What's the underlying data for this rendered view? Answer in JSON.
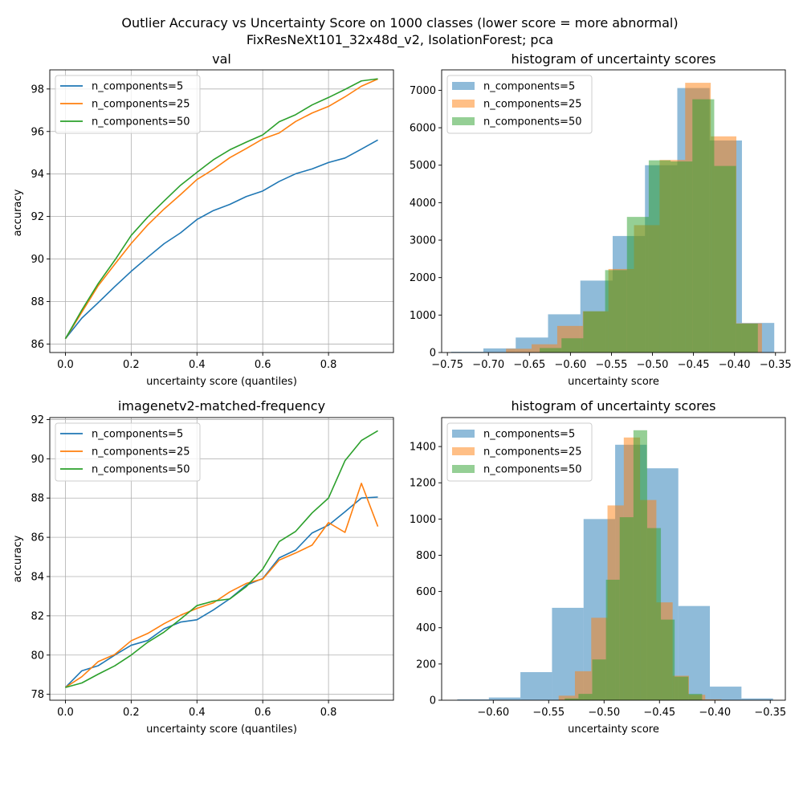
{
  "figure": {
    "suptitle_line1": "Outlier Accuracy vs Uncertainty Score on 1000 classes (lower score = more abnormal)",
    "suptitle_line2": "FixResNeXt101_32x48d_v2, IsolationForest; pca"
  },
  "colors": {
    "c5": "#1f77b4",
    "c25": "#ff7f0e",
    "c50": "#2ca02c"
  },
  "chart_data": [
    {
      "type": "line",
      "title": "val",
      "xlabel": "uncertainty score (quantiles)",
      "ylabel": "accuracy",
      "xlim": [
        -0.0475,
        0.9975
      ],
      "ylim": [
        85.6,
        98.9
      ],
      "xticks": [
        0.0,
        0.2,
        0.4,
        0.6,
        0.8
      ],
      "xtick_labels": [
        "0.0",
        "0.2",
        "0.4",
        "0.6",
        "0.8"
      ],
      "yticks": [
        86,
        88,
        90,
        92,
        94,
        96,
        98
      ],
      "ytick_labels": [
        "86",
        "88",
        "90",
        "92",
        "94",
        "96",
        "98"
      ],
      "grid": true,
      "legend": "upper-left",
      "x": [
        0.0,
        0.05,
        0.1,
        0.15,
        0.2,
        0.25,
        0.3,
        0.35,
        0.4,
        0.45,
        0.5,
        0.55,
        0.6,
        0.65,
        0.7,
        0.75,
        0.8,
        0.85,
        0.9,
        0.95
      ],
      "series": [
        {
          "name": "n_components=5",
          "color": "#1f77b4",
          "values": [
            86.25,
            87.22,
            87.95,
            88.7,
            89.42,
            90.08,
            90.72,
            91.23,
            91.86,
            92.28,
            92.57,
            92.94,
            93.2,
            93.65,
            94.01,
            94.24,
            94.54,
            94.75,
            95.17,
            95.6
          ]
        },
        {
          "name": "n_components=25",
          "color": "#ff7f0e",
          "values": [
            86.25,
            87.5,
            88.75,
            89.75,
            90.73,
            91.6,
            92.35,
            93.03,
            93.74,
            94.22,
            94.77,
            95.2,
            95.65,
            95.93,
            96.47,
            96.87,
            97.18,
            97.63,
            98.13,
            98.47
          ]
        },
        {
          "name": "n_components=50",
          "color": "#2ca02c",
          "values": [
            86.25,
            87.6,
            88.85,
            89.94,
            91.11,
            91.97,
            92.73,
            93.47,
            94.08,
            94.67,
            95.14,
            95.5,
            95.84,
            96.46,
            96.79,
            97.25,
            97.6,
            97.98,
            98.38,
            98.48
          ]
        }
      ]
    },
    {
      "type": "histogram",
      "title": "histogram of uncertainty scores",
      "xlabel": "uncertainty score",
      "ylabel": "",
      "xlim": [
        -0.757,
        -0.338
      ],
      "ylim": [
        0,
        7545
      ],
      "xticks": [
        -0.75,
        -0.7,
        -0.65,
        -0.6,
        -0.55,
        -0.5,
        -0.45,
        -0.4,
        -0.35
      ],
      "xtick_labels": [
        "−0.75",
        "−0.70",
        "−0.65",
        "−0.60",
        "−0.55",
        "−0.50",
        "−0.45",
        "−0.40",
        "−0.35"
      ],
      "yticks": [
        0,
        1000,
        2000,
        3000,
        4000,
        5000,
        6000,
        7000
      ],
      "ytick_labels": [
        "0",
        "1000",
        "2000",
        "3000",
        "4000",
        "5000",
        "6000",
        "7000"
      ],
      "grid": false,
      "legend": "upper-left",
      "alpha": 0.5,
      "series": [
        {
          "name": "n_components=5",
          "color": "#1f77b4",
          "edges": [
            -0.7455,
            -0.7061,
            -0.6667,
            -0.6273,
            -0.5879,
            -0.5485,
            -0.5091,
            -0.4697,
            -0.4303,
            -0.3909,
            -0.3515
          ],
          "counts": [
            20,
            110,
            400,
            1020,
            1920,
            3110,
            5000,
            7060,
            5660,
            790
          ]
        },
        {
          "name": "n_components=25",
          "color": "#ff7f0e",
          "edges": [
            -0.6785,
            -0.6473,
            -0.6161,
            -0.5849,
            -0.5537,
            -0.5225,
            -0.4913,
            -0.4601,
            -0.4289,
            -0.3977,
            -0.3665
          ],
          "counts": [
            100,
            220,
            710,
            1100,
            2230,
            3400,
            5140,
            7200,
            5770,
            780
          ]
        },
        {
          "name": "n_components=50",
          "color": "#2ca02c",
          "edges": [
            -0.6375,
            -0.6109,
            -0.5843,
            -0.5577,
            -0.5311,
            -0.5045,
            -0.4779,
            -0.4513,
            -0.4247,
            -0.3981,
            -0.3715
          ],
          "counts": [
            120,
            380,
            1100,
            2200,
            3620,
            5130,
            5100,
            6760,
            4980,
            770
          ]
        }
      ]
    },
    {
      "type": "line",
      "title": "imagenetv2-matched-frequency",
      "xlabel": "uncertainty score (quantiles)",
      "ylabel": "accuracy",
      "xlim": [
        -0.0475,
        0.9975
      ],
      "ylim": [
        77.7,
        92.1
      ],
      "xticks": [
        0.0,
        0.2,
        0.4,
        0.6,
        0.8
      ],
      "xtick_labels": [
        "0.0",
        "0.2",
        "0.4",
        "0.6",
        "0.8"
      ],
      "yticks": [
        78,
        80,
        82,
        84,
        86,
        88,
        90,
        92
      ],
      "ytick_labels": [
        "78",
        "80",
        "82",
        "84",
        "86",
        "88",
        "90",
        "92"
      ],
      "grid": true,
      "legend": "upper-left",
      "x": [
        0.0,
        0.05,
        0.1,
        0.15,
        0.2,
        0.25,
        0.3,
        0.35,
        0.4,
        0.45,
        0.5,
        0.55,
        0.6,
        0.65,
        0.7,
        0.75,
        0.8,
        0.85,
        0.9,
        0.95
      ],
      "series": [
        {
          "name": "n_components=5",
          "color": "#1f77b4",
          "values": [
            78.35,
            79.2,
            79.46,
            80.0,
            80.5,
            80.74,
            81.34,
            81.68,
            81.8,
            82.3,
            82.87,
            83.56,
            83.9,
            84.95,
            85.35,
            86.22,
            86.62,
            87.3,
            88.0,
            88.05
          ]
        },
        {
          "name": "n_components=25",
          "color": "#ff7f0e",
          "values": [
            78.35,
            78.9,
            79.67,
            80.03,
            80.73,
            81.1,
            81.6,
            82.03,
            82.38,
            82.66,
            83.22,
            83.65,
            83.88,
            84.84,
            85.2,
            85.6,
            86.75,
            86.25,
            88.75,
            86.55
          ]
        },
        {
          "name": "n_components=50",
          "color": "#2ca02c",
          "values": [
            78.35,
            78.58,
            79.03,
            79.45,
            80.0,
            80.65,
            81.17,
            81.83,
            82.52,
            82.75,
            82.86,
            83.49,
            84.38,
            85.78,
            86.3,
            87.24,
            88.0,
            89.9,
            90.93,
            91.43
          ]
        }
      ]
    },
    {
      "type": "histogram",
      "title": "histogram of uncertainty scores",
      "xlabel": "uncertainty score",
      "ylabel": "",
      "xlim": [
        -0.6466,
        -0.3364
      ],
      "ylim": [
        0,
        1560
      ],
      "xticks": [
        -0.6,
        -0.55,
        -0.5,
        -0.45,
        -0.4,
        -0.35
      ],
      "xtick_labels": [
        "−0.60",
        "−0.55",
        "−0.50",
        "−0.45",
        "−0.40",
        "−0.35"
      ],
      "yticks": [
        0,
        200,
        400,
        600,
        800,
        1000,
        1200,
        1400
      ],
      "ytick_labels": [
        "0",
        "200",
        "400",
        "600",
        "800",
        "1000",
        "1200",
        "1400"
      ],
      "grid": false,
      "legend": "upper-left",
      "alpha": 0.5,
      "series": [
        {
          "name": "n_components=5",
          "color": "#1f77b4",
          "edges": [
            -0.6325,
            -0.604,
            -0.5755,
            -0.547,
            -0.5185,
            -0.49,
            -0.4615,
            -0.433,
            -0.4045,
            -0.376,
            -0.3475
          ],
          "counts": [
            5,
            15,
            155,
            510,
            1000,
            1410,
            1280,
            520,
            75,
            10
          ]
        },
        {
          "name": "n_components=25",
          "color": "#ff7f0e",
          "edges": [
            -0.541,
            -0.5263,
            -0.5116,
            -0.4969,
            -0.4822,
            -0.4675,
            -0.4528,
            -0.4381,
            -0.4234,
            -0.4087,
            -0.394
          ],
          "counts": [
            25,
            160,
            455,
            1075,
            1450,
            1105,
            540,
            135,
            30,
            5
          ]
        },
        {
          "name": "n_components=50",
          "color": "#2ca02c",
          "edges": [
            -0.5355,
            -0.5231,
            -0.5107,
            -0.4983,
            -0.4859,
            -0.4735,
            -0.4611,
            -0.4487,
            -0.4363,
            -0.4239,
            -0.4115
          ],
          "counts": [
            10,
            35,
            225,
            665,
            1010,
            1490,
            950,
            445,
            130,
            35
          ]
        }
      ]
    }
  ]
}
